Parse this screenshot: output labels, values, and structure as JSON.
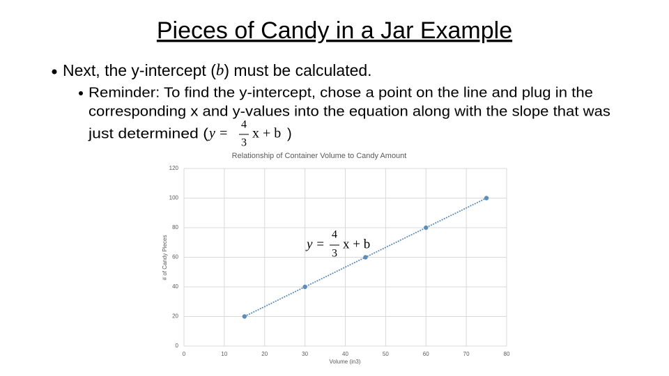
{
  "title": "Pieces of Candy in a Jar Example",
  "bullet": [
    "Next, the y-intercept (",
    "b",
    ") must be calculated."
  ],
  "sub_bullet": {
    "lines": [
      "Reminder: To find the y-intercept, chose a point on the line and plug in the",
      "corresponding x and y-values into the equation along with the slope that was",
      "just determined ("
    ],
    "closing": ")"
  },
  "equation": {
    "lhs": "y =",
    "numerator": "4",
    "denominator": "3",
    "rhs": "x + b"
  },
  "chart_data": {
    "type": "line",
    "title": "Relationship of Container Volume to Candy Amount",
    "x_label": "Volume (in3)",
    "y_label": "# of Candy Pieces",
    "x": [
      15,
      30,
      45,
      60,
      75
    ],
    "values": [
      20,
      40,
      60,
      80,
      100
    ],
    "color": "#5b8db8",
    "xlim": [
      0,
      80
    ],
    "ylim": [
      0,
      120
    ],
    "xticks": [
      0,
      10,
      20,
      30,
      40,
      50,
      60,
      70,
      80
    ],
    "yticks": [
      0,
      20,
      40,
      60,
      80,
      100,
      120
    ],
    "grid": true,
    "annotation": {
      "lhs": "y =",
      "numerator": "4",
      "denominator": "3",
      "rhs": "x + b"
    }
  }
}
